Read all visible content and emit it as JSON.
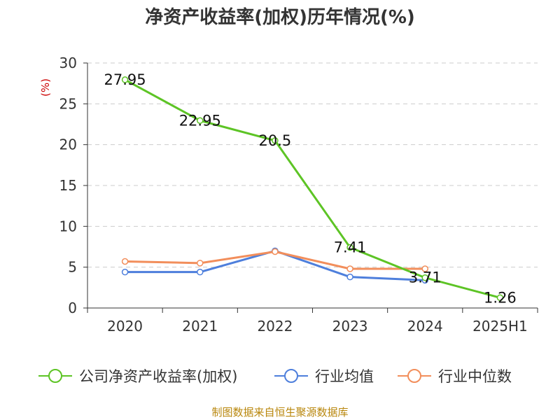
{
  "chart_data": {
    "type": "line",
    "title": "净资产收益率(加权)历年情况(%)",
    "ylabel": "(%)",
    "categories": [
      "2020",
      "2021",
      "2022",
      "2023",
      "2024",
      "2025H1"
    ],
    "ylim": [
      0,
      30
    ],
    "yticks": [
      0,
      5,
      10,
      15,
      20,
      25,
      30
    ],
    "grid": true,
    "legend_position": "bottom",
    "series": [
      {
        "name": "公司净资产收益率(加权)",
        "color": "#5dc425",
        "values": [
          27.95,
          22.95,
          20.5,
          7.41,
          3.71,
          1.26
        ],
        "labels": [
          "27.95",
          "22.95",
          "20.5",
          "7.41",
          "3.71",
          "1.26"
        ]
      },
      {
        "name": "行业均值",
        "color": "#4e7fdc",
        "values": [
          4.4,
          4.4,
          7.0,
          3.8,
          3.4,
          null
        ]
      },
      {
        "name": "行业中位数",
        "color": "#f28e5b",
        "values": [
          5.7,
          5.5,
          6.9,
          4.8,
          4.8,
          null
        ]
      }
    ]
  },
  "footer": {
    "source": "制图数据来自恒生聚源数据库"
  }
}
